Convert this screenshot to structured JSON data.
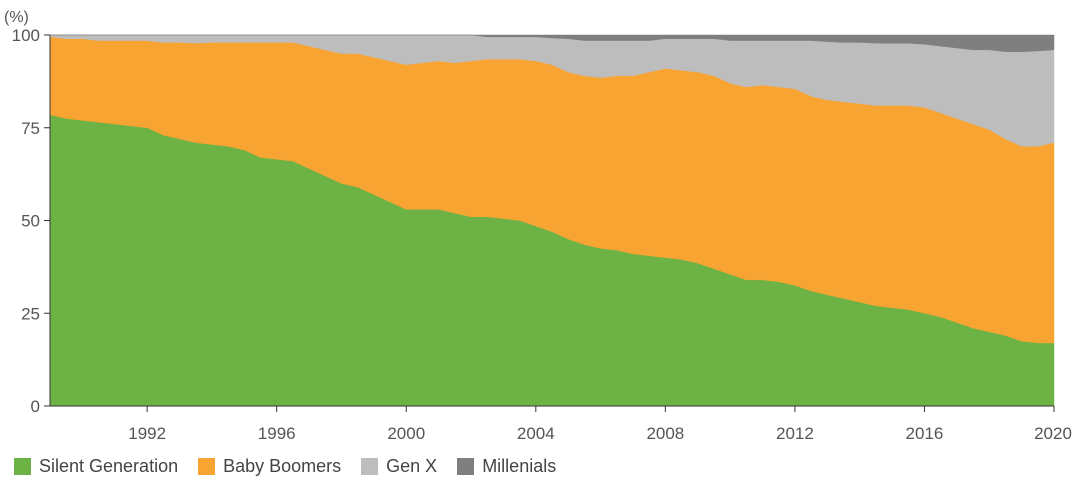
{
  "chart_data": {
    "type": "area",
    "stacked": true,
    "unit_label": "(%)",
    "xlim": [
      1989,
      2020
    ],
    "ylim": [
      0,
      100
    ],
    "y_ticks": [
      0,
      25,
      50,
      75,
      100
    ],
    "x_ticks": [
      1992,
      1996,
      2000,
      2004,
      2008,
      2012,
      2016,
      2020
    ],
    "x": [
      1989,
      1989.5,
      1990,
      1990.5,
      1991,
      1991.5,
      1992,
      1992.5,
      1993,
      1993.5,
      1994,
      1994.5,
      1995,
      1995.5,
      1996,
      1996.5,
      1997,
      1997.5,
      1998,
      1998.5,
      1999,
      1999.5,
      2000,
      2000.5,
      2001,
      2001.5,
      2002,
      2002.5,
      2003,
      2003.5,
      2004,
      2004.5,
      2005,
      2005.5,
      2006,
      2006.5,
      2007,
      2007.5,
      2008,
      2008.5,
      2009,
      2009.5,
      2010,
      2010.5,
      2011,
      2011.5,
      2012,
      2012.5,
      2013,
      2013.5,
      2014,
      2014.5,
      2015,
      2015.5,
      2016,
      2016.5,
      2017,
      2017.5,
      2018,
      2018.5,
      2019,
      2019.5,
      2020
    ],
    "series": [
      {
        "name": "Silent Generation",
        "color": "#6cb244",
        "values": [
          78.5,
          77.5,
          77,
          76.5,
          76,
          75.5,
          75,
          73,
          72,
          71,
          70.5,
          70,
          69,
          67,
          66.5,
          66,
          64,
          62,
          60,
          59,
          57,
          55,
          53,
          53,
          53,
          52,
          51,
          51,
          50.5,
          50,
          48.5,
          47,
          45,
          43.5,
          42.5,
          42,
          41,
          40.5,
          40,
          39.5,
          38.5,
          37,
          35.5,
          34,
          34,
          33.5,
          32.5,
          31,
          30,
          29,
          28,
          27,
          26.5,
          26,
          25,
          24,
          22.5,
          21,
          20,
          19,
          17.5,
          17,
          17
        ]
      },
      {
        "name": "Baby Boomers",
        "color": "#f8a433",
        "values": [
          21,
          21.5,
          22,
          22,
          22.5,
          23,
          23.5,
          25,
          26,
          26.8,
          27.5,
          28,
          29,
          31,
          31.5,
          32,
          33,
          34,
          35,
          36,
          37,
          38,
          39,
          39.5,
          40,
          40.5,
          42,
          42.5,
          43,
          43.5,
          44.5,
          45,
          45,
          45.5,
          46,
          47,
          48,
          49.5,
          51,
          51,
          51.5,
          52,
          51.5,
          52,
          52.5,
          52.5,
          53,
          52.5,
          52.5,
          53,
          53.5,
          54,
          54.5,
          55,
          55.5,
          55,
          55,
          55,
          54.5,
          53,
          52.5,
          53,
          54
        ]
      },
      {
        "name": "Gen X",
        "color": "#bdbdbd",
        "values": [
          0.5,
          1,
          1,
          1.5,
          1.5,
          1.5,
          1.5,
          2,
          2,
          2.2,
          2,
          2,
          2,
          2,
          2,
          2,
          3,
          4,
          5,
          5,
          6,
          7,
          8,
          7.5,
          7,
          7.5,
          7,
          6,
          6,
          6,
          6.5,
          7.2,
          9,
          9.5,
          10,
          9.5,
          9.5,
          8.5,
          8,
          8.5,
          9,
          10,
          11.5,
          12.5,
          12,
          12.5,
          13,
          15,
          15.7,
          16,
          16.5,
          16.8,
          16.8,
          16.8,
          17,
          18,
          19,
          20,
          21.5,
          23.5,
          25.5,
          25.7,
          25
        ]
      },
      {
        "name": "Millenials",
        "color": "#7f7f80",
        "values": [
          0,
          0,
          0,
          0,
          0,
          0,
          0,
          0,
          0,
          0,
          0,
          0,
          0,
          0,
          0,
          0,
          0,
          0,
          0,
          0,
          0,
          0,
          0,
          0,
          0,
          0,
          0,
          0.5,
          0.5,
          0.5,
          0.5,
          0.8,
          1,
          1.5,
          1.5,
          1.5,
          1.5,
          1.5,
          1,
          1,
          1,
          1,
          1.5,
          1.5,
          1.5,
          1.5,
          1.5,
          1.5,
          1.8,
          2,
          2,
          2.2,
          2.2,
          2.2,
          2.5,
          3,
          3.5,
          4,
          4,
          4.5,
          4.6,
          4.3,
          4
        ]
      }
    ],
    "legend_position": "bottom-left"
  }
}
